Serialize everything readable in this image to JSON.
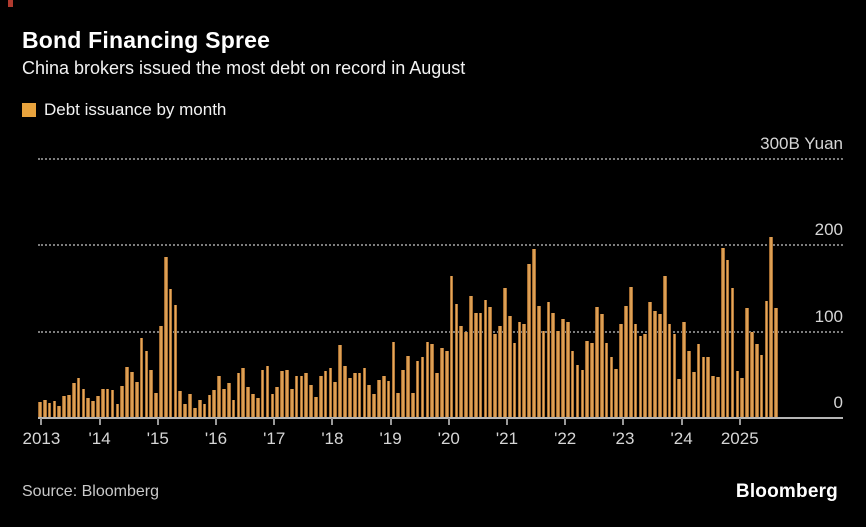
{
  "header": {
    "title": "Bond Financing Spree",
    "subtitle": "China brokers issued the most debt on record in August"
  },
  "legend": {
    "label": "Debt issuance by month",
    "swatch_color": "#E8A33D"
  },
  "footer": {
    "source": "Source: Bloomberg",
    "logo": "Bloomberg"
  },
  "colors": {
    "background": "#000000",
    "bar": "#E8A33D",
    "bar_edge": "#8A5420",
    "grid": "#7D7D7D",
    "baseline": "#B5B5B5",
    "axis_text": "#D6D6D6",
    "text": "#F2F2F2"
  },
  "chart_data": {
    "type": "bar",
    "title": "Debt issuance by month",
    "unit": "B Yuan",
    "x_start": "2013-01",
    "x_end": "2025-09",
    "ylim": [
      0,
      300
    ],
    "grid": "horizontal-dotted",
    "legend_position": "top-left",
    "y_ticks": [
      {
        "value": 300,
        "label": "300B Yuan"
      },
      {
        "value": 200,
        "label": "200"
      },
      {
        "value": 100,
        "label": "100"
      },
      {
        "value": 0,
        "label": "0"
      }
    ],
    "x_tick_labels": [
      "2013",
      "'14",
      "'15",
      "'16",
      "'17",
      "'18",
      "'19",
      "'20",
      "'21",
      "'22",
      "'23",
      "'24",
      "2025"
    ],
    "months_per_x_tick": 12,
    "values": [
      17,
      20,
      16,
      19,
      13,
      24,
      26,
      39,
      45,
      33,
      22,
      18,
      24,
      32,
      33,
      31,
      15,
      36,
      58,
      52,
      40,
      92,
      76,
      55,
      28,
      106,
      185,
      148,
      130,
      30,
      15,
      27,
      10,
      20,
      15,
      25,
      31,
      47,
      33,
      39,
      20,
      51,
      57,
      35,
      27,
      22,
      55,
      59,
      27,
      35,
      53,
      55,
      33,
      47,
      47,
      51,
      37,
      23,
      47,
      53,
      57,
      41,
      83,
      59,
      45,
      51,
      51,
      57,
      37,
      27,
      43,
      47,
      42,
      87,
      28,
      55,
      71,
      28,
      65,
      69,
      87,
      85,
      51,
      80,
      77,
      163,
      131,
      106,
      98,
      140,
      120,
      120,
      136,
      128,
      96,
      106,
      149,
      117,
      86,
      110,
      108,
      177,
      195,
      129,
      100,
      133,
      121,
      100,
      113,
      110,
      76,
      60,
      54,
      88,
      86,
      127,
      119,
      86,
      70,
      56,
      108,
      129,
      151,
      108,
      94,
      96,
      133,
      123,
      119,
      163,
      108,
      96,
      44,
      110,
      76,
      52,
      84,
      70,
      70,
      48,
      46,
      196,
      182,
      150,
      53,
      45,
      126,
      99,
      84,
      72,
      134,
      208,
      126
    ]
  }
}
